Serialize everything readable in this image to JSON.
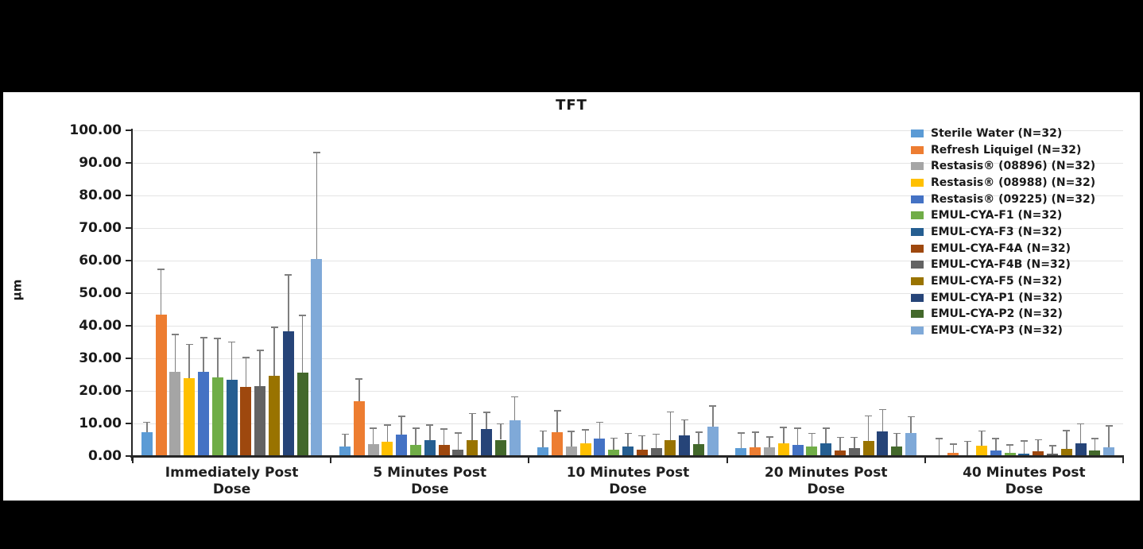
{
  "window": {
    "background_color": "#000000",
    "panel_color": "#ffffff"
  },
  "chart_data": {
    "type": "bar",
    "title": "TFT",
    "ylabel": "μm",
    "ylim": [
      0,
      100
    ],
    "ytick_step": 10,
    "ytick_decimals": 2,
    "grid": true,
    "legend_position": "right",
    "error_bars": "upper whisker with cap, gray",
    "error_bar_color": "#7f7f7f",
    "axis_color": "#262626",
    "gridline_color": "#e4e4e4",
    "categories": [
      "Immediately Post Dose",
      "5 Minutes Post Dose",
      "10 Minutes Post Dose",
      "20 Minutes Post Dose",
      "40 Minutes Post Dose"
    ],
    "series": [
      {
        "name": "Sterile Water (N=32)",
        "color": "#5B9BD5",
        "values": [
          7.4,
          3.0,
          2.6,
          2.4,
          0.3
        ],
        "error_up": [
          3.2,
          3.9,
          5.3,
          4.8,
          5.2
        ]
      },
      {
        "name": "Refresh Liquigel (N=32)",
        "color": "#ED7D31",
        "values": [
          43.5,
          16.9,
          7.2,
          2.6,
          1.0
        ],
        "error_up": [
          14.0,
          6.9,
          6.9,
          4.9,
          2.8
        ]
      },
      {
        "name": "Restasis® (08896) (N=32)",
        "color": "#A5A5A5",
        "values": [
          25.8,
          3.7,
          3.0,
          2.8,
          0.3
        ],
        "error_up": [
          11.7,
          5.0,
          4.7,
          3.2,
          4.4
        ]
      },
      {
        "name": "Restasis® (08988) (N=32)",
        "color": "#FFC000",
        "values": [
          24.0,
          4.3,
          4.0,
          3.8,
          3.2
        ],
        "error_up": [
          10.5,
          5.4,
          4.2,
          5.2,
          4.7
        ]
      },
      {
        "name": "Restasis® (09225) (N=32)",
        "color": "#4472C4",
        "values": [
          25.9,
          6.7,
          5.3,
          3.4,
          1.6
        ],
        "error_up": [
          10.6,
          5.7,
          5.2,
          5.3,
          3.9
        ]
      },
      {
        "name": "EMUL-CYA-F1 (N=32)",
        "color": "#70AD47",
        "values": [
          24.1,
          3.4,
          2.0,
          3.0,
          1.0
        ],
        "error_up": [
          12.2,
          5.3,
          3.7,
          4.1,
          2.6
        ]
      },
      {
        "name": "EMUL-CYA-F3 (N=32)",
        "color": "#255E91",
        "values": [
          23.3,
          4.8,
          2.9,
          3.8,
          0.7
        ],
        "error_up": [
          11.9,
          4.9,
          4.2,
          4.9,
          4.1
        ]
      },
      {
        "name": "EMUL-CYA-F4A (N=32)",
        "color": "#9E480E",
        "values": [
          21.1,
          3.4,
          2.0,
          1.8,
          1.4
        ],
        "error_up": [
          9.3,
          5.1,
          4.4,
          4.1,
          3.8
        ]
      },
      {
        "name": "EMUL-CYA-F4B (N=32)",
        "color": "#636363",
        "values": [
          21.4,
          2.0,
          2.4,
          2.4,
          0.7
        ],
        "error_up": [
          11.2,
          5.2,
          4.5,
          3.5,
          2.7
        ]
      },
      {
        "name": "EMUL-CYA-F5 (N=32)",
        "color": "#997300",
        "values": [
          24.6,
          4.8,
          4.8,
          4.6,
          2.2
        ],
        "error_up": [
          15.1,
          8.4,
          8.9,
          7.9,
          5.8
        ]
      },
      {
        "name": "EMUL-CYA-P1 (N=32)",
        "color": "#264478",
        "values": [
          38.4,
          8.4,
          6.3,
          7.5,
          4.0
        ],
        "error_up": [
          17.4,
          5.2,
          5.0,
          6.9,
          6.1
        ]
      },
      {
        "name": "EMUL-CYA-P2 (N=32)",
        "color": "#43682B",
        "values": [
          25.6,
          5.0,
          3.6,
          2.9,
          1.8
        ],
        "error_up": [
          17.7,
          5.1,
          3.9,
          4.2,
          3.7
        ]
      },
      {
        "name": "EMUL-CYA-P3 (N=32)",
        "color": "#7FA9D8",
        "values": [
          60.4,
          11.0,
          9.0,
          7.1,
          2.8
        ],
        "error_up": [
          32.9,
          7.4,
          6.6,
          5.1,
          6.6
        ]
      }
    ]
  }
}
